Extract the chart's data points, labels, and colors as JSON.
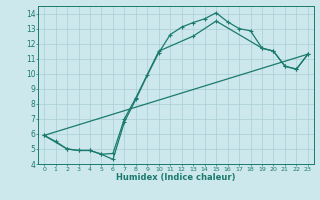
{
  "xlabel": "Humidex (Indice chaleur)",
  "ylabel": "",
  "bg_color": "#cde8ec",
  "grid_color": "#aacdd4",
  "line_color": "#1a7a6e",
  "xlim": [
    -0.5,
    23.5
  ],
  "ylim": [
    4,
    14.5
  ],
  "xticks": [
    0,
    1,
    2,
    3,
    4,
    5,
    6,
    7,
    8,
    9,
    10,
    11,
    12,
    13,
    14,
    15,
    16,
    17,
    18,
    19,
    20,
    21,
    22,
    23
  ],
  "yticks": [
    4,
    5,
    6,
    7,
    8,
    9,
    10,
    11,
    12,
    13,
    14
  ],
  "line1_x": [
    0,
    1,
    2,
    3,
    4,
    5,
    6,
    7,
    8,
    9,
    10,
    11,
    12,
    13,
    14,
    15,
    16,
    17,
    18,
    19,
    20,
    21,
    22,
    23
  ],
  "line1_y": [
    5.9,
    5.5,
    5.0,
    4.9,
    4.9,
    4.65,
    4.3,
    6.8,
    8.3,
    9.9,
    11.4,
    12.6,
    13.1,
    13.4,
    13.65,
    14.05,
    13.45,
    13.0,
    12.85,
    11.7,
    11.5,
    10.5,
    10.3,
    11.3
  ],
  "line2_x": [
    0,
    2,
    3,
    4,
    5,
    6,
    7,
    8,
    10,
    13,
    15,
    19,
    20,
    21,
    22,
    23
  ],
  "line2_y": [
    5.9,
    5.0,
    4.9,
    4.9,
    4.65,
    4.7,
    7.0,
    8.4,
    11.5,
    12.5,
    13.5,
    11.7,
    11.5,
    10.5,
    10.3,
    11.3
  ],
  "line3_x": [
    0,
    23
  ],
  "line3_y": [
    5.9,
    11.3
  ]
}
